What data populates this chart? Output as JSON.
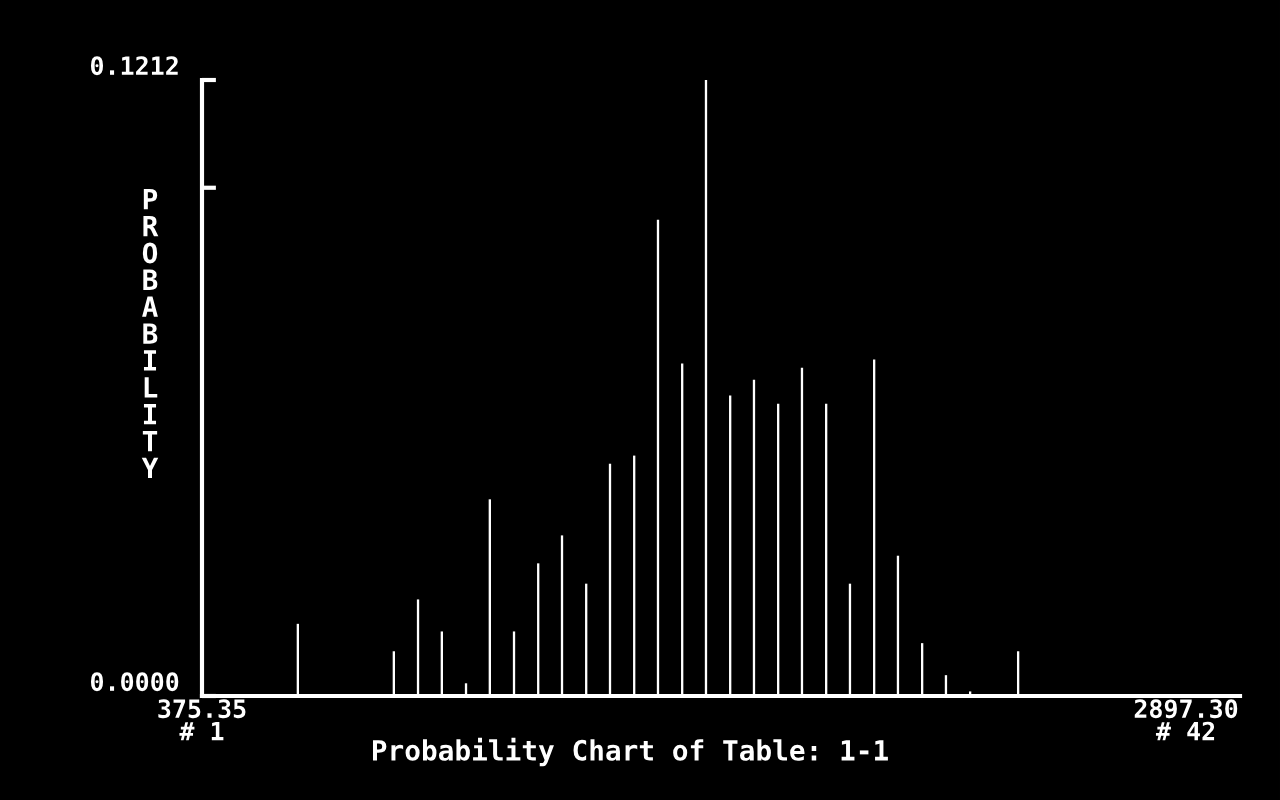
{
  "chart_data": {
    "type": "bar",
    "title": "Probability Chart of Table: 1-1",
    "ylabel": "PROBABILITY",
    "x": [
      621,
      867,
      929,
      990,
      1052,
      1113,
      1175,
      1237,
      1298,
      1360,
      1421,
      1483,
      1544,
      1606,
      1667,
      1729,
      1790,
      1852,
      1913,
      1975,
      2036,
      2098,
      2159,
      2221,
      2282,
      2344,
      2467
    ],
    "values": [
      0.0142,
      0.0088,
      0.019,
      0.0127,
      0.0025,
      0.0387,
      0.0127,
      0.0261,
      0.0316,
      0.0221,
      0.0457,
      0.0473,
      0.0937,
      0.0654,
      0.1212,
      0.0591,
      0.0622,
      0.0575,
      0.0646,
      0.0575,
      0.0221,
      0.0662,
      0.0276,
      0.0104,
      0.0041,
      0.0009,
      0.0088
    ],
    "color": "#ffffff",
    "xlim": [
      375.35,
      3035.6
    ],
    "xticks": [
      375.35,
      {
        "value": 2897.3,
        "label": "2897.30"
      }
    ],
    "annotations": [
      "# 1",
      "# 42"
    ],
    "ylim": [
      0,
      0.1212
    ],
    "yticks": [
      {
        "value": 0,
        "label": "0.0000"
      },
      {
        "value": 0.1,
        "label": null
      },
      {
        "value": 0.1212,
        "label": "0.1212"
      }
    ],
    "grid": false,
    "legend": false
  }
}
